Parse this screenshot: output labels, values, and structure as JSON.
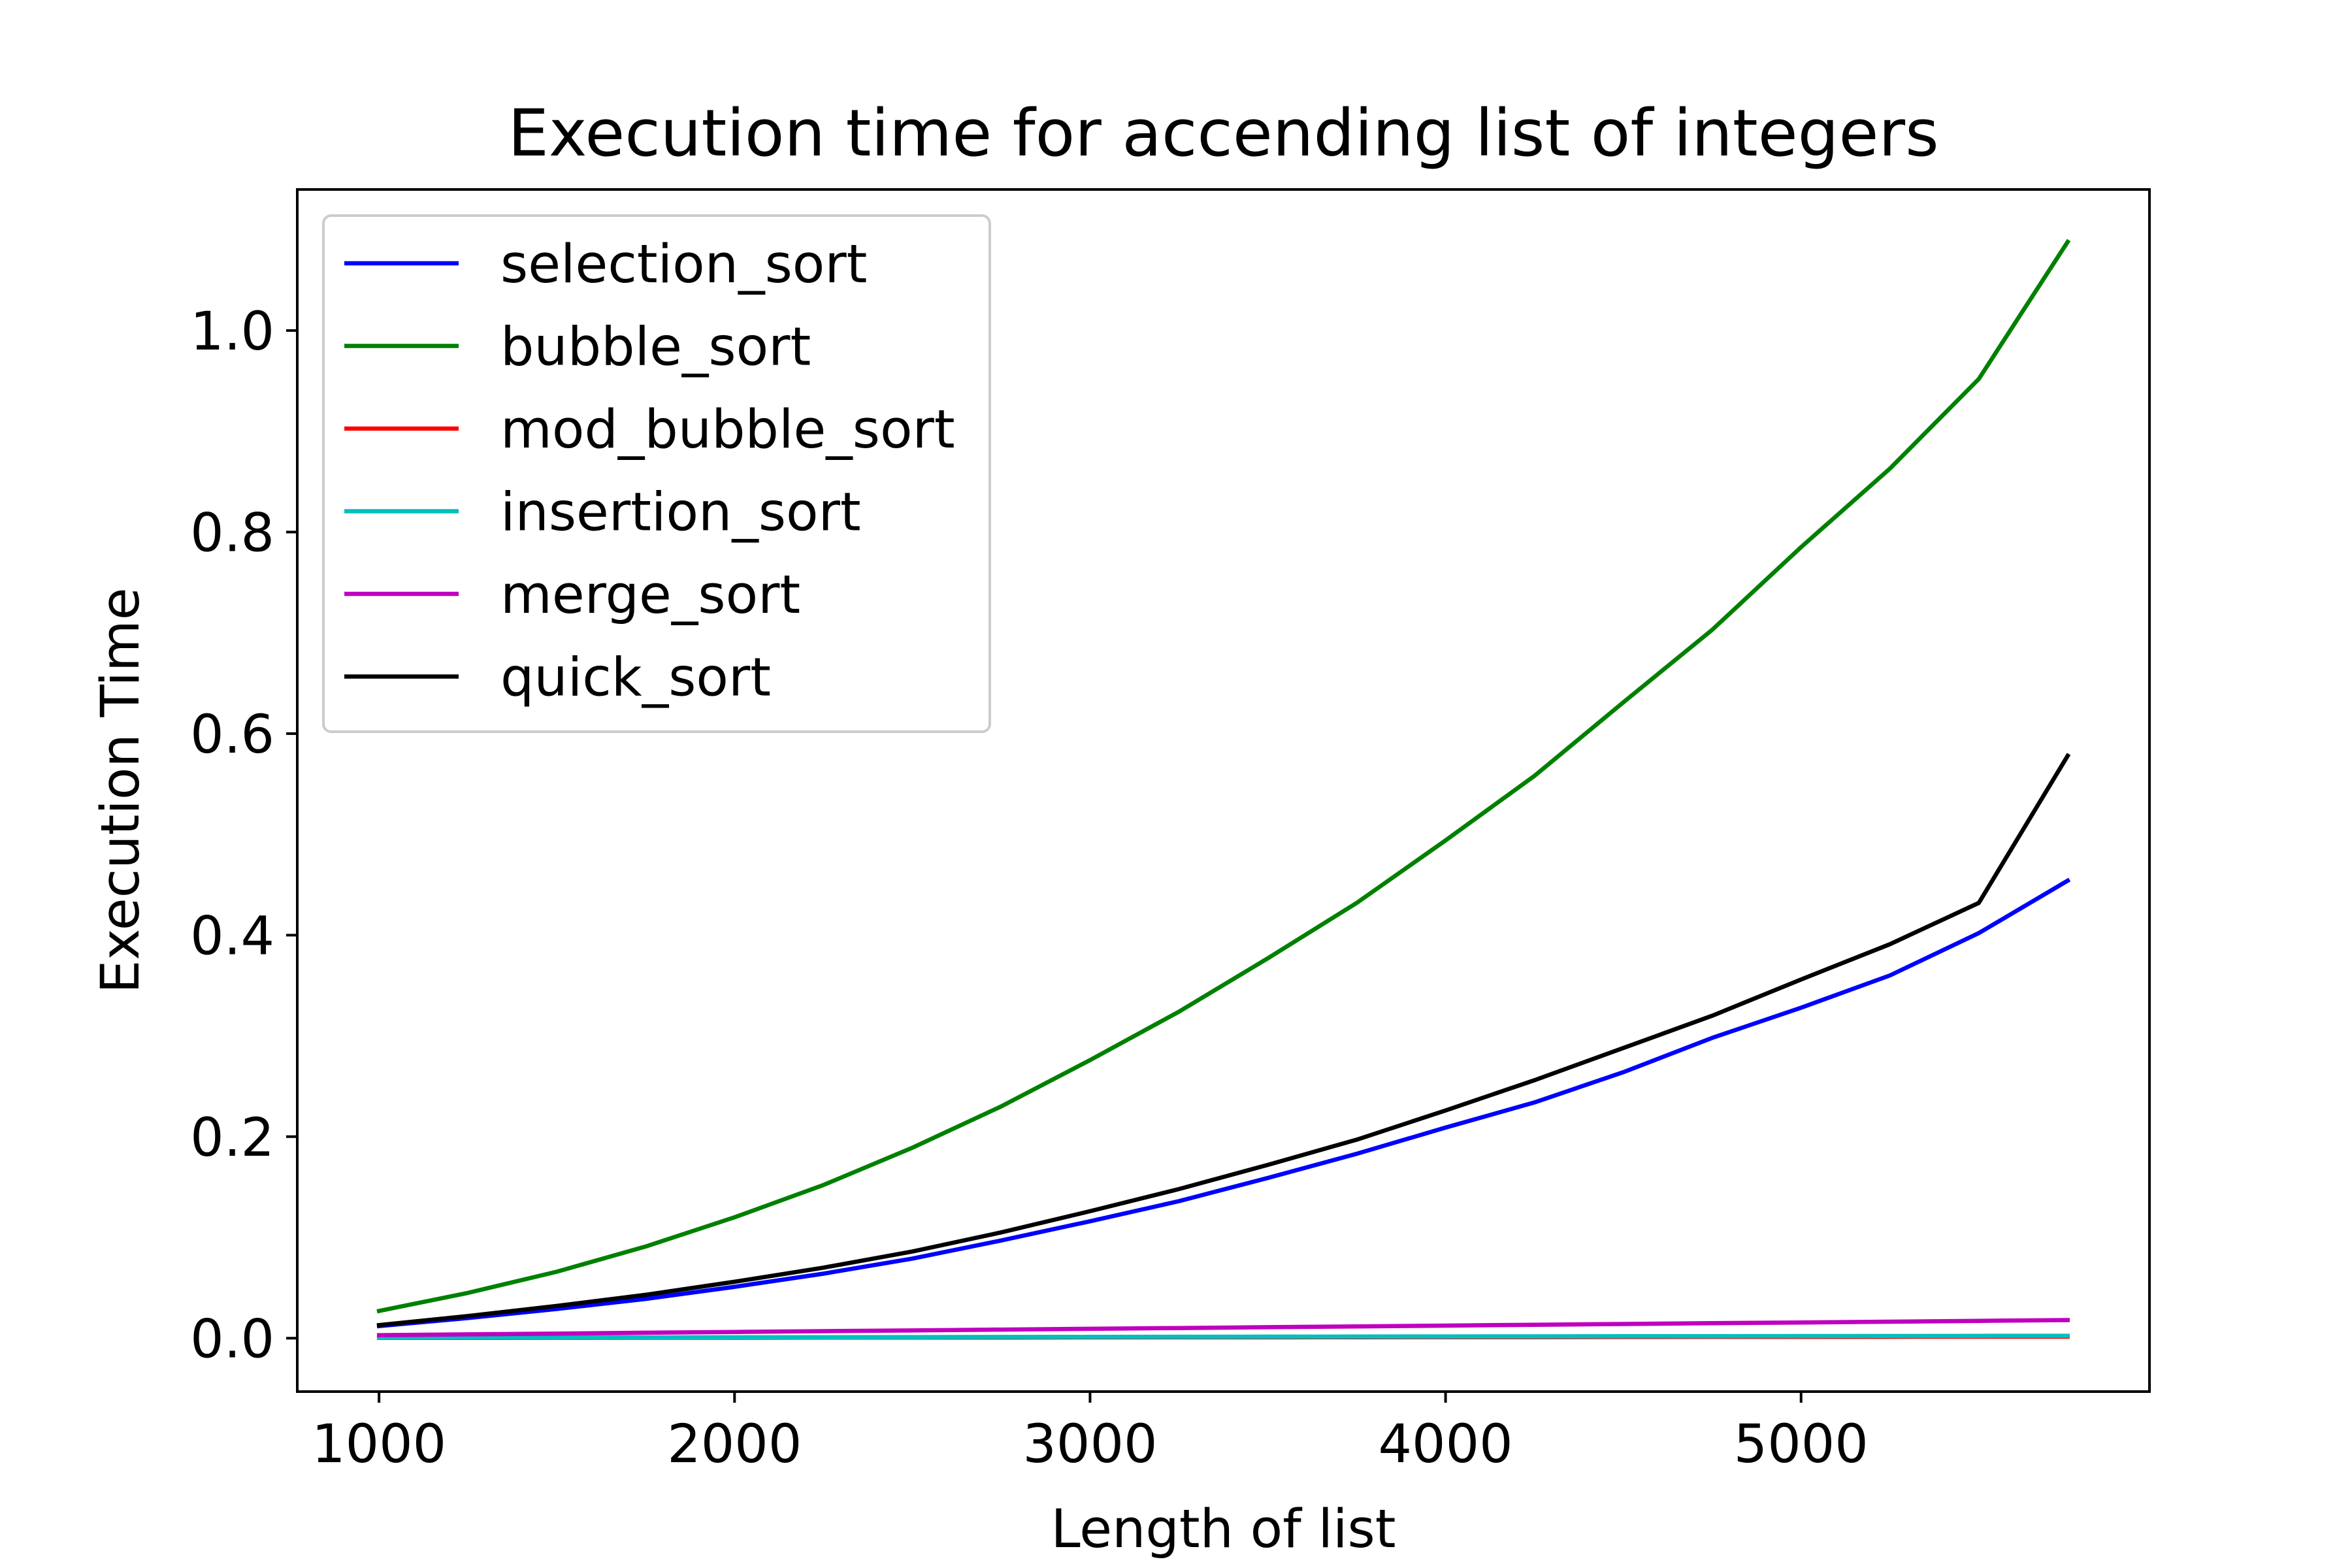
{
  "chart_data": {
    "type": "line",
    "title": "Execution time for accending list of integers",
    "xlabel": "Length of list",
    "ylabel": "Execution Time",
    "xlim": [
      770,
      5980
    ],
    "ylim": [
      -0.053,
      1.14
    ],
    "xticks": [
      1000,
      2000,
      3000,
      4000,
      5000
    ],
    "xtick_labels": [
      "1000",
      "2000",
      "3000",
      "4000",
      "5000"
    ],
    "yticks": [
      0.0,
      0.2,
      0.4,
      0.6,
      0.8,
      1.0
    ],
    "ytick_labels": [
      "0.0",
      "0.2",
      "0.4",
      "0.6",
      "0.8",
      "1.0"
    ],
    "grid": false,
    "legend_position": "upper-left",
    "x": [
      1000,
      1250,
      1500,
      1750,
      2000,
      2250,
      2500,
      2750,
      3000,
      3250,
      3500,
      3750,
      4000,
      4250,
      4500,
      4750,
      5000,
      5250,
      5500,
      5750
    ],
    "series": [
      {
        "name": "selection_sort",
        "color": "#0000ff",
        "values": [
          0.012,
          0.02,
          0.029,
          0.039,
          0.051,
          0.064,
          0.079,
          0.097,
          0.116,
          0.136,
          0.159,
          0.183,
          0.209,
          0.234,
          0.264,
          0.298,
          0.328,
          0.36,
          0.402,
          0.454
        ]
      },
      {
        "name": "bubble_sort",
        "color": "#008000",
        "values": [
          0.027,
          0.045,
          0.066,
          0.091,
          0.12,
          0.152,
          0.189,
          0.23,
          0.276,
          0.324,
          0.377,
          0.432,
          0.494,
          0.558,
          0.631,
          0.703,
          0.785,
          0.863,
          0.952,
          1.088
        ]
      },
      {
        "name": "mod_bubble_sort",
        "color": "#ff0000",
        "values": [
          0.0003,
          0.0003,
          0.0004,
          0.0005,
          0.0005,
          0.0006,
          0.0007,
          0.0007,
          0.0008,
          0.0009,
          0.0009,
          0.001,
          0.0011,
          0.0011,
          0.0012,
          0.0013,
          0.0013,
          0.0014,
          0.0015,
          0.0015
        ]
      },
      {
        "name": "insertion_sort",
        "color": "#00bfbf",
        "values": [
          0.0005,
          0.0006,
          0.0007,
          0.0008,
          0.0009,
          0.001,
          0.0011,
          0.0012,
          0.0013,
          0.0014,
          0.0015,
          0.0016,
          0.0017,
          0.0018,
          0.0019,
          0.002,
          0.0021,
          0.0022,
          0.0023,
          0.0024
        ]
      },
      {
        "name": "merge_sort",
        "color": "#bf00bf",
        "values": [
          0.003,
          0.0038,
          0.0046,
          0.0054,
          0.0062,
          0.007,
          0.0077,
          0.0085,
          0.0093,
          0.0101,
          0.0109,
          0.0117,
          0.0125,
          0.0133,
          0.0141,
          0.0149,
          0.0156,
          0.0164,
          0.0172,
          0.018
        ]
      },
      {
        "name": "quick_sort",
        "color": "#000000",
        "values": [
          0.013,
          0.022,
          0.032,
          0.043,
          0.056,
          0.07,
          0.086,
          0.105,
          0.126,
          0.148,
          0.172,
          0.197,
          0.226,
          0.256,
          0.288,
          0.32,
          0.356,
          0.391,
          0.432,
          0.578
        ]
      }
    ]
  }
}
